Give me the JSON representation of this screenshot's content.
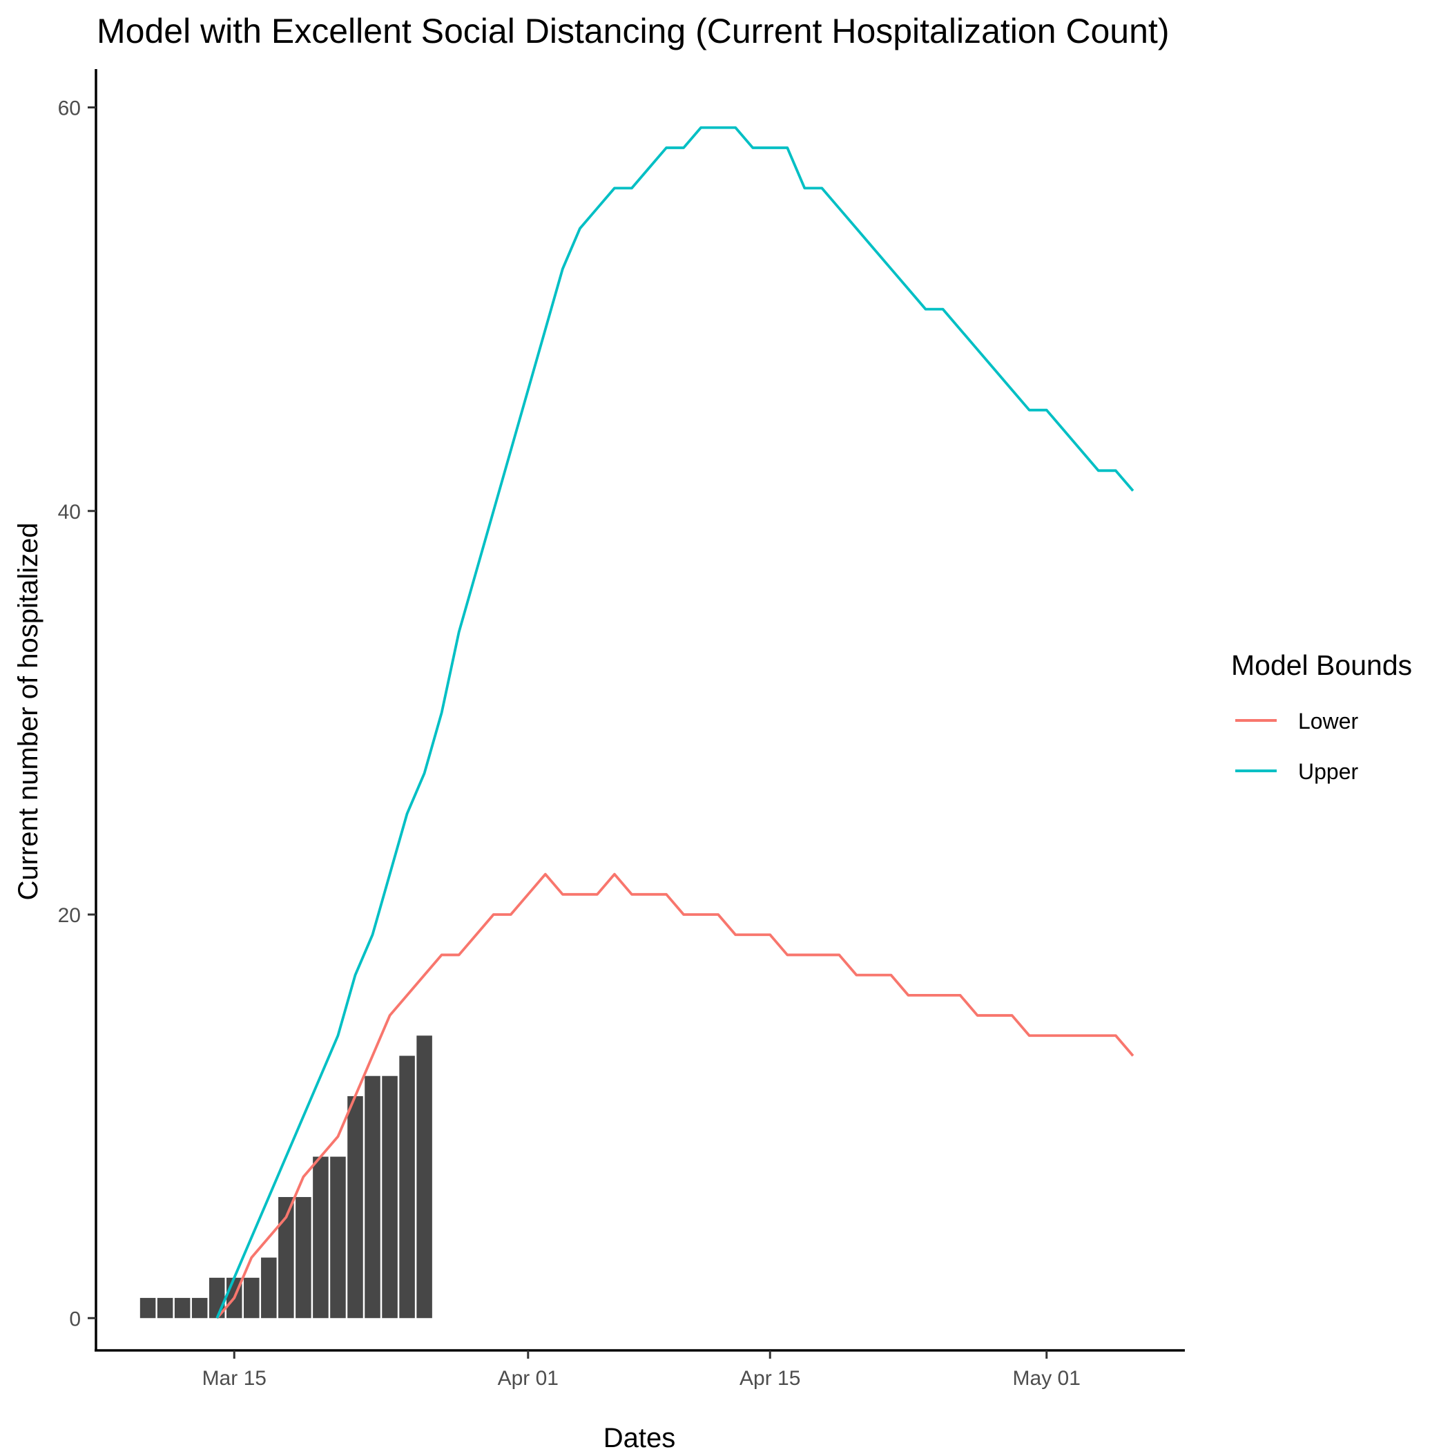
{
  "chart_data": {
    "type": "bar+line",
    "title": "Model with Excellent Social Distancing (Current Hospitalization Count)",
    "xlabel": "Dates",
    "ylabel": "Current number of hospitalized",
    "x_tick_labels": [
      {
        "date": "2020-03-15",
        "label": "Mar 15"
      },
      {
        "date": "2020-04-01",
        "label": "Apr 01"
      },
      {
        "date": "2020-04-15",
        "label": "Apr 15"
      },
      {
        "date": "2020-05-01",
        "label": "May 01"
      }
    ],
    "y_ticks": [
      0,
      20,
      40,
      60
    ],
    "xlim": [
      "2020-03-07",
      "2020-05-09"
    ],
    "ylim": [
      -1.6,
      61.9
    ],
    "grid": false,
    "legend": {
      "title": "Model Bounds",
      "position": "right",
      "entries": [
        {
          "label": "Lower",
          "color": "#F8766D"
        },
        {
          "label": "Upper",
          "color": "#00BFC4"
        }
      ]
    },
    "bars": {
      "color": "#474747",
      "dates": [
        "2020-03-10",
        "2020-03-11",
        "2020-03-12",
        "2020-03-13",
        "2020-03-14",
        "2020-03-15",
        "2020-03-16",
        "2020-03-17",
        "2020-03-18",
        "2020-03-19",
        "2020-03-20",
        "2020-03-21",
        "2020-03-22",
        "2020-03-23",
        "2020-03-24",
        "2020-03-25",
        "2020-03-26",
        "2020-03-27"
      ],
      "values": [
        1,
        1,
        1,
        1,
        2,
        2,
        2,
        3,
        6,
        6,
        8,
        8,
        11,
        12,
        12,
        13,
        14,
        0
      ]
    },
    "series": [
      {
        "name": "Lower",
        "color": "#F8766D",
        "points": [
          [
            "2020-03-14",
            0
          ],
          [
            "2020-03-15",
            1
          ],
          [
            "2020-03-16",
            3
          ],
          [
            "2020-03-17",
            4
          ],
          [
            "2020-03-18",
            5
          ],
          [
            "2020-03-19",
            7
          ],
          [
            "2020-03-20",
            8
          ],
          [
            "2020-03-21",
            9
          ],
          [
            "2020-03-22",
            11
          ],
          [
            "2020-03-23",
            13
          ],
          [
            "2020-03-24",
            15
          ],
          [
            "2020-03-25",
            16
          ],
          [
            "2020-03-26",
            17
          ],
          [
            "2020-03-27",
            18
          ],
          [
            "2020-03-28",
            18
          ],
          [
            "2020-03-29",
            19
          ],
          [
            "2020-03-30",
            20
          ],
          [
            "2020-03-31",
            20
          ],
          [
            "2020-04-01",
            21
          ],
          [
            "2020-04-02",
            22
          ],
          [
            "2020-04-03",
            21
          ],
          [
            "2020-04-04",
            21
          ],
          [
            "2020-04-05",
            21
          ],
          [
            "2020-04-06",
            22
          ],
          [
            "2020-04-07",
            21
          ],
          [
            "2020-04-08",
            21
          ],
          [
            "2020-04-09",
            21
          ],
          [
            "2020-04-10",
            20
          ],
          [
            "2020-04-11",
            20
          ],
          [
            "2020-04-12",
            20
          ],
          [
            "2020-04-13",
            19
          ],
          [
            "2020-04-14",
            19
          ],
          [
            "2020-04-15",
            19
          ],
          [
            "2020-04-16",
            18
          ],
          [
            "2020-04-17",
            18
          ],
          [
            "2020-04-18",
            18
          ],
          [
            "2020-04-19",
            18
          ],
          [
            "2020-04-20",
            17
          ],
          [
            "2020-04-21",
            17
          ],
          [
            "2020-04-22",
            17
          ],
          [
            "2020-04-23",
            16
          ],
          [
            "2020-04-24",
            16
          ],
          [
            "2020-04-25",
            16
          ],
          [
            "2020-04-26",
            16
          ],
          [
            "2020-04-27",
            15
          ],
          [
            "2020-04-28",
            15
          ],
          [
            "2020-04-29",
            15
          ],
          [
            "2020-04-30",
            14
          ],
          [
            "2020-05-01",
            14
          ],
          [
            "2020-05-02",
            14
          ],
          [
            "2020-05-03",
            14
          ],
          [
            "2020-05-04",
            14
          ],
          [
            "2020-05-05",
            14
          ],
          [
            "2020-05-06",
            13
          ]
        ]
      },
      {
        "name": "Upper",
        "color": "#00BFC4",
        "points": [
          [
            "2020-03-14",
            0
          ],
          [
            "2020-03-15",
            2
          ],
          [
            "2020-03-16",
            4
          ],
          [
            "2020-03-17",
            6
          ],
          [
            "2020-03-18",
            8
          ],
          [
            "2020-03-19",
            10
          ],
          [
            "2020-03-20",
            12
          ],
          [
            "2020-03-21",
            14
          ],
          [
            "2020-03-22",
            17
          ],
          [
            "2020-03-23",
            19
          ],
          [
            "2020-03-24",
            22
          ],
          [
            "2020-03-25",
            25
          ],
          [
            "2020-03-26",
            27
          ],
          [
            "2020-03-27",
            30
          ],
          [
            "2020-03-28",
            34
          ],
          [
            "2020-03-29",
            37
          ],
          [
            "2020-03-30",
            40
          ],
          [
            "2020-03-31",
            43
          ],
          [
            "2020-04-01",
            46
          ],
          [
            "2020-04-02",
            49
          ],
          [
            "2020-04-03",
            52
          ],
          [
            "2020-04-04",
            54
          ],
          [
            "2020-04-05",
            55
          ],
          [
            "2020-04-06",
            56
          ],
          [
            "2020-04-07",
            56
          ],
          [
            "2020-04-08",
            57
          ],
          [
            "2020-04-09",
            58
          ],
          [
            "2020-04-10",
            58
          ],
          [
            "2020-04-11",
            59
          ],
          [
            "2020-04-12",
            59
          ],
          [
            "2020-04-13",
            59
          ],
          [
            "2020-04-14",
            58
          ],
          [
            "2020-04-15",
            58
          ],
          [
            "2020-04-16",
            58
          ],
          [
            "2020-04-17",
            56
          ],
          [
            "2020-04-18",
            56
          ],
          [
            "2020-04-19",
            55
          ],
          [
            "2020-04-20",
            54
          ],
          [
            "2020-04-21",
            53
          ],
          [
            "2020-04-22",
            52
          ],
          [
            "2020-04-23",
            51
          ],
          [
            "2020-04-24",
            50
          ],
          [
            "2020-04-25",
            50
          ],
          [
            "2020-04-26",
            49
          ],
          [
            "2020-04-27",
            48
          ],
          [
            "2020-04-28",
            47
          ],
          [
            "2020-04-29",
            46
          ],
          [
            "2020-04-30",
            45
          ],
          [
            "2020-05-01",
            45
          ],
          [
            "2020-05-02",
            44
          ],
          [
            "2020-05-03",
            43
          ],
          [
            "2020-05-04",
            42
          ],
          [
            "2020-05-05",
            42
          ],
          [
            "2020-05-06",
            41
          ]
        ]
      }
    ]
  }
}
